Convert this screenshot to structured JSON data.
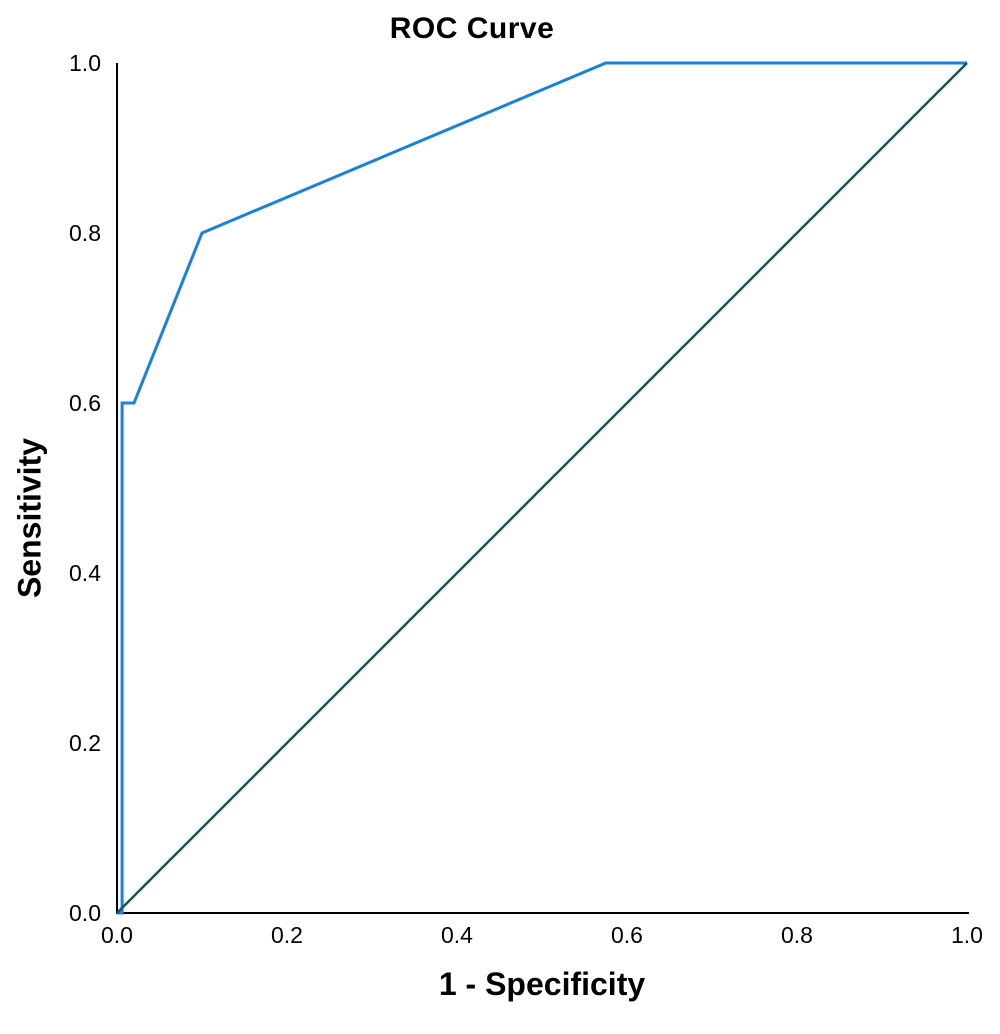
{
  "chart_data": {
    "type": "line",
    "title": "ROC Curve",
    "xlabel": "1 - Specificity",
    "ylabel": "Sensitivity",
    "xlim": [
      0.0,
      1.0
    ],
    "ylim": [
      0.0,
      1.0
    ],
    "x_ticks": [
      {
        "value": 0.0,
        "label": "0.0"
      },
      {
        "value": 0.2,
        "label": "0.2"
      },
      {
        "value": 0.4,
        "label": "0.4"
      },
      {
        "value": 0.6,
        "label": "0.6"
      },
      {
        "value": 0.8,
        "label": "0.8"
      },
      {
        "value": 1.0,
        "label": "1.0"
      }
    ],
    "y_ticks": [
      {
        "value": 0.0,
        "label": "0.0"
      },
      {
        "value": 0.2,
        "label": "0.2"
      },
      {
        "value": 0.4,
        "label": "0.4"
      },
      {
        "value": 0.6,
        "label": "0.6"
      },
      {
        "value": 0.8,
        "label": "0.8"
      },
      {
        "value": 1.0,
        "label": "1.0"
      }
    ],
    "grid": false,
    "legend": "none",
    "series": [
      {
        "name": "roc-curve",
        "color": "#1b80d8",
        "points": [
          [
            0.0,
            0.0
          ],
          [
            0.006,
            0.0
          ],
          [
            0.006,
            0.6
          ],
          [
            0.02,
            0.6
          ],
          [
            0.1,
            0.8
          ],
          [
            0.575,
            1.0
          ],
          [
            1.0,
            1.0
          ]
        ]
      },
      {
        "name": "reference-diagonal",
        "color": "#13565b",
        "points": [
          [
            0.0,
            0.0
          ],
          [
            1.0,
            1.0
          ]
        ]
      }
    ],
    "axis_color": "#000000"
  }
}
